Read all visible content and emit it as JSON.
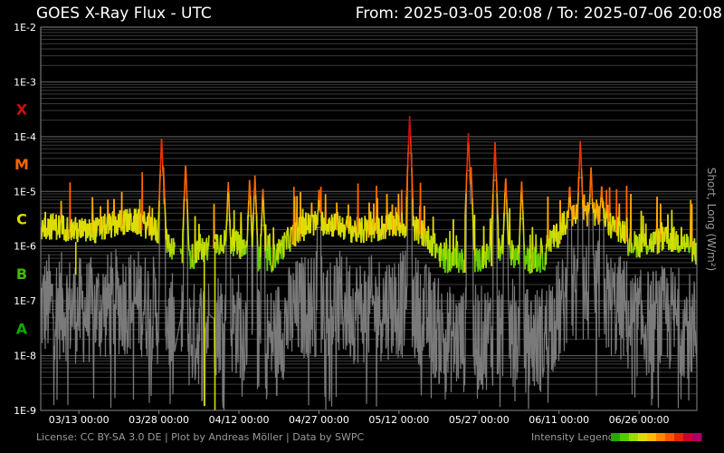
{
  "header": {
    "title": "GOES X-Ray Flux - UTC",
    "range": "From: 2025-03-05 20:08  /  To: 2025-07-06 20:08"
  },
  "footer": {
    "license": "License: CC BY-SA 3.0 DE | Plot by Andreas Möller | Data by SWPC",
    "legend_label": "Intensity Legend",
    "legend_colors": [
      "#22aa00",
      "#55cc00",
      "#99dd00",
      "#dddd00",
      "#ffbb00",
      "#ff8800",
      "#ff5500",
      "#ee2200",
      "#cc0033",
      "#aa0066"
    ]
  },
  "chart_data": {
    "type": "line",
    "title": "GOES X-Ray Flux - UTC",
    "ylabel": "Short, Long (W/m²)",
    "y_scale": "log",
    "ylim": [
      1e-09,
      0.01
    ],
    "y_ticks": [
      "1E-2",
      "1E-3",
      "1E-4",
      "1E-5",
      "1E-6",
      "1E-7",
      "1E-8",
      "1E-9"
    ],
    "x_range": [
      "2025-03-05 20:08",
      "2025-07-06 20:08"
    ],
    "x_ticks": [
      "03/13 00:00",
      "03/28 00:00",
      "04/12 00:00",
      "04/27 00:00",
      "05/12 00:00",
      "05/27 00:00",
      "06/11 00:00",
      "06/26 00:00"
    ],
    "grid": true,
    "flare_classes": [
      {
        "label": "X",
        "color": "#cc1111",
        "level": 0.0001
      },
      {
        "label": "M",
        "color": "#ff6600",
        "level": 1e-05
      },
      {
        "label": "C",
        "color": "#dddd00",
        "level": 1e-06
      },
      {
        "label": "B",
        "color": "#44bb00",
        "level": 1e-07
      },
      {
        "label": "A",
        "color": "#11aa00",
        "level": 1e-08
      }
    ],
    "series": [
      {
        "name": "Long",
        "color_by": "intensity",
        "peaks": [
          {
            "x": "2025-03-28 12:00",
            "y": 0.0001
          },
          {
            "x": "2025-03-28 20:00",
            "y": 3e-05
          },
          {
            "x": "2025-04-02 00:00",
            "y": 3.5e-05
          },
          {
            "x": "2025-04-10 00:00",
            "y": 1.5e-05
          },
          {
            "x": "2025-04-14 00:00",
            "y": 1.8e-05
          },
          {
            "x": "2025-04-15 00:00",
            "y": 2e-05
          },
          {
            "x": "2025-04-16 12:00",
            "y": 1.2e-05
          },
          {
            "x": "2025-04-27 00:00",
            "y": 1.1e-05
          },
          {
            "x": "2025-05-14 00:00",
            "y": 0.00025
          },
          {
            "x": "2025-05-25 00:00",
            "y": 0.00012
          },
          {
            "x": "2025-05-25 12:00",
            "y": 3e-05
          },
          {
            "x": "2025-05-30 00:00",
            "y": 8e-05
          },
          {
            "x": "2025-06-01 00:00",
            "y": 2e-05
          },
          {
            "x": "2025-06-04 00:00",
            "y": 1.6e-05
          },
          {
            "x": "2025-06-13 00:00",
            "y": 1.5e-05
          },
          {
            "x": "2025-06-15 00:00",
            "y": 9e-05
          },
          {
            "x": "2025-06-17 00:00",
            "y": 3e-05
          },
          {
            "x": "2025-06-19 00:00",
            "y": 1.5e-05
          }
        ]
      },
      {
        "name": "Short",
        "color": "#7a7a7a"
      }
    ]
  }
}
